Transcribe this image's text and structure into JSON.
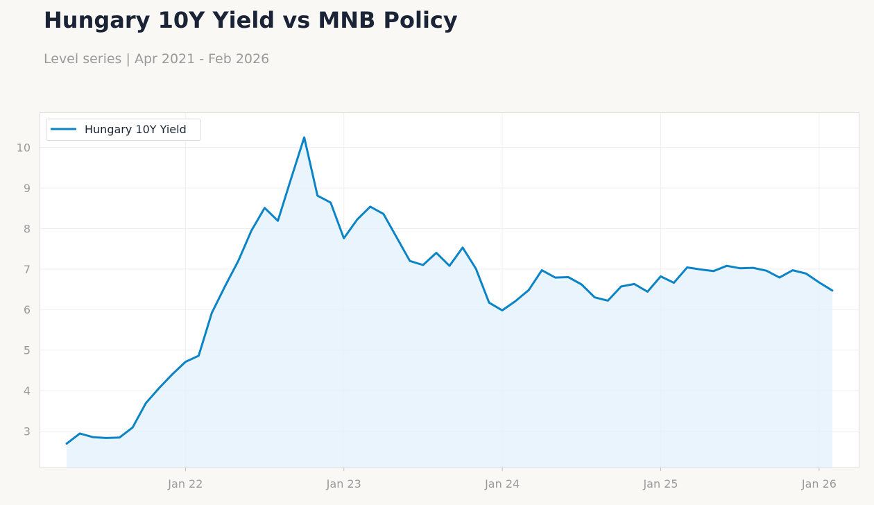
{
  "header": {
    "title": "Hungary 10Y Yield vs MNB Policy",
    "subtitle": "Level series | Apr 2021 - Feb 2026"
  },
  "colors": {
    "line": "#0a84c6",
    "fill": "#e4f1fb",
    "grid": "#efefef",
    "frame": "#dcdcdc",
    "background": "#f9f8f5",
    "plot_background": "#ffffff"
  },
  "chart_data": {
    "type": "area",
    "title": "Hungary 10Y Yield vs MNB Policy",
    "subtitle": "Level series | Apr 2021 - Feb 2026",
    "xlabel": "",
    "ylabel": "",
    "legend_position": "top-left",
    "grid": true,
    "x_ticks": [
      "Jan 22",
      "Jan 23",
      "Jan 24",
      "Jan 25",
      "Jan 26"
    ],
    "y_ticks": [
      3,
      4,
      5,
      6,
      7,
      8,
      9,
      10
    ],
    "xlim": [
      "2021-02",
      "2026-04"
    ],
    "ylim": [
      2.1,
      10.85
    ],
    "series": [
      {
        "name": "Hungary 10Y Yield",
        "x": [
          "2021-04",
          "2021-05",
          "2021-06",
          "2021-07",
          "2021-08",
          "2021-09",
          "2021-10",
          "2021-11",
          "2021-12",
          "2022-01",
          "2022-02",
          "2022-03",
          "2022-04",
          "2022-05",
          "2022-06",
          "2022-07",
          "2022-08",
          "2022-09",
          "2022-10",
          "2022-11",
          "2022-12",
          "2023-01",
          "2023-02",
          "2023-03",
          "2023-04",
          "2023-05",
          "2023-06",
          "2023-07",
          "2023-08",
          "2023-09",
          "2023-10",
          "2023-11",
          "2023-12",
          "2024-01",
          "2024-02",
          "2024-03",
          "2024-04",
          "2024-05",
          "2024-06",
          "2024-07",
          "2024-08",
          "2024-09",
          "2024-10",
          "2024-11",
          "2024-12",
          "2025-01",
          "2025-02",
          "2025-03",
          "2025-04",
          "2025-05",
          "2025-06",
          "2025-07",
          "2025-08",
          "2025-09",
          "2025-10",
          "2025-11",
          "2025-12",
          "2026-01",
          "2026-02"
        ],
        "values": [
          2.69,
          2.94,
          2.85,
          2.83,
          2.84,
          3.09,
          3.69,
          4.06,
          4.4,
          4.71,
          4.86,
          5.92,
          6.58,
          7.2,
          7.95,
          8.51,
          8.19,
          9.23,
          10.25,
          8.81,
          8.64,
          7.76,
          8.22,
          8.54,
          8.36,
          7.78,
          7.2,
          7.1,
          7.4,
          7.08,
          7.53,
          7.01,
          6.17,
          5.98,
          6.21,
          6.48,
          6.97,
          6.79,
          6.8,
          6.62,
          6.3,
          6.22,
          6.57,
          6.63,
          6.44,
          6.82,
          6.66,
          7.04,
          6.99,
          6.95,
          7.08,
          7.02,
          7.03,
          6.96,
          6.79,
          6.97,
          6.89,
          6.67,
          6.47
        ]
      }
    ]
  }
}
